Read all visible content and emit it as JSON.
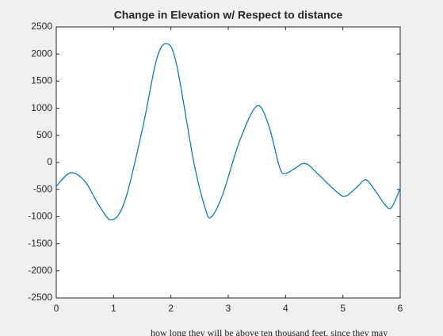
{
  "chart_data": {
    "type": "line",
    "title": "Change in Elevation w/ Respect to distance",
    "x": [
      0,
      0.25,
      0.5,
      0.75,
      0.97,
      1.2,
      1.5,
      1.75,
      1.93,
      2.1,
      2.4,
      2.6,
      2.7,
      2.9,
      3.2,
      3.5,
      3.7,
      3.9,
      4.0,
      4.15,
      4.35,
      4.6,
      4.9,
      5.05,
      5.25,
      5.4,
      5.55,
      5.75,
      5.85,
      6.0
    ],
    "series": [
      {
        "color": "#0072bd",
        "values": [
          -440,
          -190,
          -350,
          -800,
          -1060,
          -700,
          600,
          1900,
          2190,
          1800,
          0,
          -850,
          -1010,
          -600,
          400,
          1040,
          700,
          -100,
          -200,
          -120,
          -20,
          -250,
          -550,
          -620,
          -450,
          -320,
          -500,
          -800,
          -830,
          -480
        ]
      }
    ],
    "xlim": [
      0,
      6
    ],
    "xticks": [
      0,
      1,
      2,
      3,
      4,
      5,
      6
    ],
    "ylim": [
      -2500,
      2500
    ],
    "yticks": [
      -2500,
      -2000,
      -1500,
      -1000,
      -500,
      0,
      500,
      1000,
      1500,
      2000,
      2500
    ],
    "grid": false
  },
  "footer_fragment": "how long they will be above ten thousand feet, since they may"
}
